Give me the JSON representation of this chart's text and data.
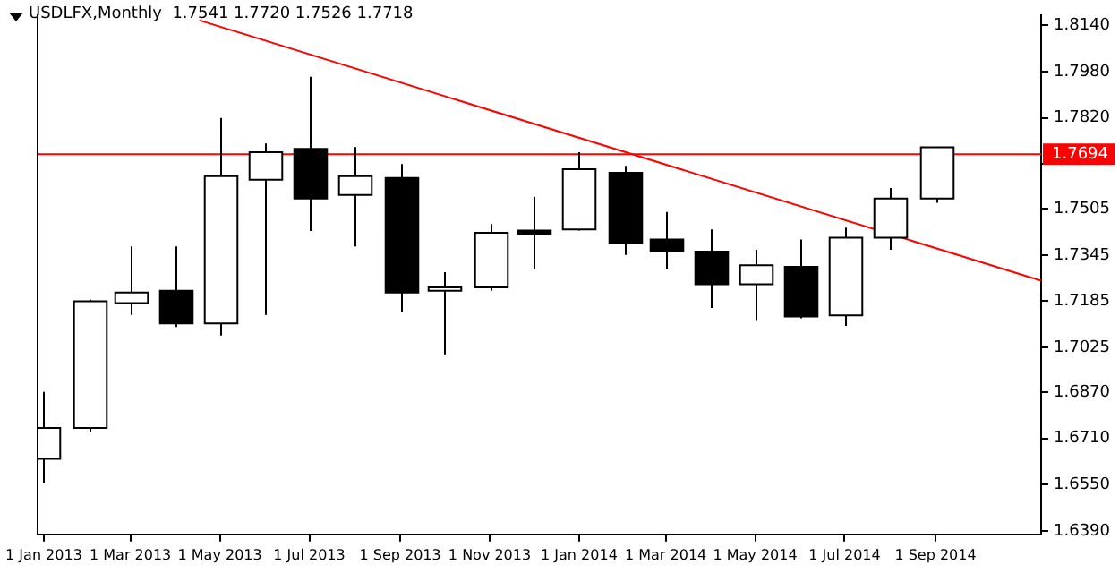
{
  "chart_data": {
    "type": "candlestick",
    "title": "USDLFX,Monthly  1.7541 1.7720 1.7526 1.7718",
    "x": [
      "2013-01",
      "2013-02",
      "2013-03",
      "2013-04",
      "2013-05",
      "2013-06",
      "2013-07",
      "2013-08",
      "2013-09",
      "2013-10",
      "2013-11",
      "2013-12",
      "2014-01",
      "2014-02",
      "2014-03",
      "2014-04",
      "2014-05",
      "2014-06",
      "2014-07",
      "2014-08",
      "2014-09"
    ],
    "ohlc": [
      [
        1.6639,
        1.6871,
        1.6556,
        1.6746
      ],
      [
        1.6746,
        1.719,
        1.6734,
        1.7185
      ],
      [
        1.7179,
        1.7375,
        1.7138,
        1.7215
      ],
      [
        1.7221,
        1.7375,
        1.7096,
        1.7108
      ],
      [
        1.7108,
        1.782,
        1.7066,
        1.7618
      ],
      [
        1.7606,
        1.7731,
        1.7138,
        1.7701
      ],
      [
        1.7713,
        1.7962,
        1.7428,
        1.7541
      ],
      [
        1.7553,
        1.7719,
        1.7375,
        1.7618
      ],
      [
        1.7612,
        1.766,
        1.7149,
        1.7215
      ],
      [
        1.7221,
        1.7286,
        1.7001,
        1.7233
      ],
      [
        1.7233,
        1.7452,
        1.7221,
        1.7422
      ],
      [
        1.743,
        1.7547,
        1.7298,
        1.7419
      ],
      [
        1.7434,
        1.7701,
        1.743,
        1.7642
      ],
      [
        1.763,
        1.7654,
        1.7345,
        1.7387
      ],
      [
        1.7399,
        1.7494,
        1.7298,
        1.7357
      ],
      [
        1.7357,
        1.7434,
        1.7162,
        1.7244
      ],
      [
        1.7244,
        1.7363,
        1.712,
        1.731
      ],
      [
        1.7304,
        1.7399,
        1.7126,
        1.7132
      ],
      [
        1.7136,
        1.744,
        1.71,
        1.7405
      ],
      [
        1.7405,
        1.7577,
        1.7363,
        1.7541
      ],
      [
        1.7541,
        1.772,
        1.7526,
        1.7718
      ]
    ],
    "series": [
      {
        "type": "line",
        "color": "#ff0000",
        "x": [
          "2013-04-17",
          "2014-11-12"
        ],
        "values": [
          1.8158,
          1.7256
        ]
      }
    ],
    "xlim": [
      "2012-12-28",
      "2014-11-12"
    ],
    "xticks": [
      {
        "value": "2013-01-01",
        "label": "1 Jan 2013"
      },
      {
        "value": "2013-03-01",
        "label": "1 Mar 2013"
      },
      {
        "value": "2013-05-01",
        "label": "1 May 2013"
      },
      {
        "value": "2013-07-01",
        "label": "1 Jul 2013"
      },
      {
        "value": "2013-09-01",
        "label": "1 Sep 2013"
      },
      {
        "value": "2013-11-01",
        "label": "1 Nov 2013"
      },
      {
        "value": "2014-01-01",
        "label": "1 Jan 2014"
      },
      {
        "value": "2014-03-01",
        "label": "1 Mar 2014"
      },
      {
        "value": "2014-05-01",
        "label": "1 May 2014"
      },
      {
        "value": "2014-07-01",
        "label": "1 Jul 2014"
      },
      {
        "value": "2014-09-01",
        "label": "1 Sep 2014"
      }
    ],
    "ylim": [
      1.6378,
      1.8176
    ],
    "yticks": [
      {
        "value": 1.814,
        "label": "1.8140"
      },
      {
        "value": 1.798,
        "label": "1.7980"
      },
      {
        "value": 1.782,
        "label": "1.7820"
      },
      {
        "value": 1.766,
        "label": null
      },
      {
        "value": 1.7505,
        "label": "1.7505"
      },
      {
        "value": 1.7345,
        "label": "1.7345"
      },
      {
        "value": 1.7185,
        "label": "1.7185"
      },
      {
        "value": 1.7025,
        "label": "1.7025"
      },
      {
        "value": 1.687,
        "label": "1.6870"
      },
      {
        "value": 1.671,
        "label": "1.6710"
      },
      {
        "value": 1.655,
        "label": "1.6550"
      },
      {
        "value": 1.639,
        "label": "1.6390"
      }
    ],
    "ref_lines": [
      {
        "axis": "y",
        "value": 1.7694,
        "label": "1.7694",
        "color": "#ff0000"
      }
    ],
    "grid": false,
    "legend": false
  }
}
